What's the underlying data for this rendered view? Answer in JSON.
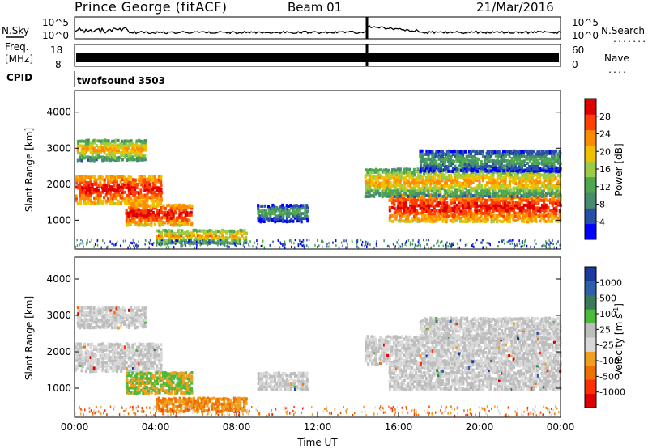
{
  "header": {
    "title": "Prince George (fitACF)",
    "beam": "Beam 01",
    "date": "21/Mar/2016"
  },
  "left_labels": {
    "nsky": "N.Sky",
    "freq_line1": "Freq.",
    "freq_line2": "[MHz]",
    "cpid": "CPID"
  },
  "right_labels": {
    "nsearch": "N.Search",
    "nsearch_dots": "........",
    "nave": "Nave",
    "nave_dots": "...."
  },
  "cpid_text": "twofsound 3503",
  "noise_axis": {
    "left_ticks": [
      "10^5",
      "10^0"
    ],
    "right_ticks": [
      "10^5",
      "10^0"
    ]
  },
  "freq_axis": {
    "left_ticks": [
      "18",
      "8"
    ],
    "right_ticks": [
      "60",
      "0"
    ]
  },
  "colors": {
    "power_scale": [
      "#0000ff",
      "#2a4fa8",
      "#468c6e",
      "#4fa84f",
      "#9ccc46",
      "#f0c000",
      "#ff8c00",
      "#ff4000",
      "#e00000"
    ],
    "velocity_scale": [
      "#1a3aa0",
      "#2e5fa8",
      "#3a7a5a",
      "#4cba3a",
      "#bdbdbd",
      "#d8d8d8",
      "#f0a020",
      "#f07000",
      "#ff3000",
      "#e00000"
    ]
  },
  "chart_data": [
    {
      "type": "heatmap",
      "name": "power",
      "ylabel": "Slant Range [km]",
      "xlabel": "",
      "yticks": [
        "1000",
        "2000",
        "3000",
        "4000"
      ],
      "ylim": [
        200,
        4600
      ],
      "xlim": [
        0,
        24
      ],
      "colorbar_label": "Power [dB]",
      "colorbar_ticks": [
        "4",
        "8",
        "12",
        "16",
        "20",
        "24",
        "28"
      ],
      "echo_regions": [
        {
          "t0": 0.0,
          "t1": 4.3,
          "r0": 1500,
          "r1": 2300,
          "level": "high"
        },
        {
          "t0": 2.5,
          "t1": 5.8,
          "r0": 900,
          "r1": 1500,
          "level": "high"
        },
        {
          "t0": 0.1,
          "t1": 3.5,
          "r0": 2700,
          "r1": 3300,
          "level": "medium"
        },
        {
          "t0": 4.0,
          "t1": 8.5,
          "r0": 400,
          "r1": 800,
          "level": "medium"
        },
        {
          "t0": 9.0,
          "t1": 11.5,
          "r0": 1000,
          "r1": 1500,
          "level": "low"
        },
        {
          "t0": 15.5,
          "t1": 24.0,
          "r0": 1000,
          "r1": 1800,
          "level": "high"
        },
        {
          "t0": 14.3,
          "t1": 24.0,
          "r0": 1700,
          "r1": 2500,
          "level": "medium"
        },
        {
          "t0": 17.0,
          "t1": 24.0,
          "r0": 2400,
          "r1": 3000,
          "level": "low"
        }
      ]
    },
    {
      "type": "heatmap",
      "name": "velocity",
      "ylabel": "Slant Range [km]",
      "xlabel": "Time UT",
      "xticks": [
        "00:00",
        "04:00",
        "08:00",
        "12:00",
        "16:00",
        "20:00",
        "00:00"
      ],
      "yticks": [
        "1000",
        "2000",
        "3000",
        "4000"
      ],
      "ylim": [
        200,
        4600
      ],
      "xlim": [
        0,
        24
      ],
      "colorbar_label": "Velocity [m s",
      "colorbar_sup": "-1",
      "colorbar_label_end": "]",
      "colorbar_ticks": [
        "1000",
        "500",
        "100",
        "25",
        "-25",
        "-100",
        "-500",
        "-1000"
      ]
    }
  ]
}
